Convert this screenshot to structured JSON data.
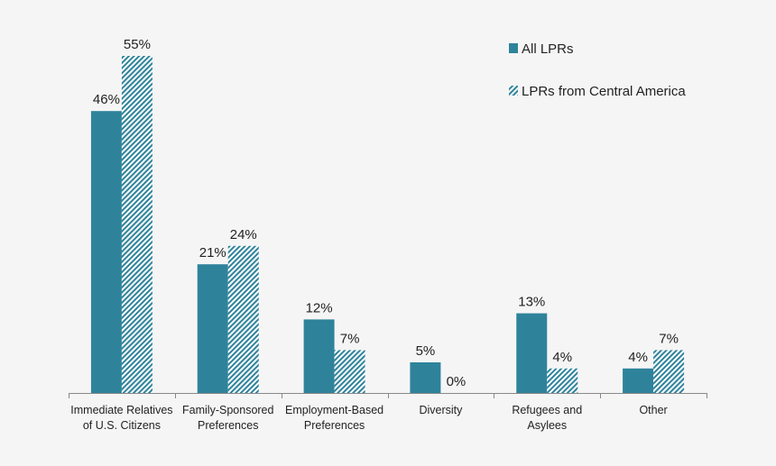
{
  "chart_data": {
    "type": "bar",
    "title": "",
    "xlabel": "",
    "ylabel": "",
    "ylim": [
      0,
      60
    ],
    "grid": false,
    "legend_position": "top-right",
    "categories": [
      [
        "Immediate Relatives",
        "of U.S. Citizens"
      ],
      [
        "Family-Sponsored",
        "Preferences"
      ],
      [
        "Employment-Based",
        "Preferences"
      ],
      [
        "Diversity"
      ],
      [
        "Refugees and",
        "Asylees"
      ],
      [
        "Other"
      ]
    ],
    "series": [
      {
        "name": "All LPRs",
        "values": [
          46,
          21,
          12,
          5,
          13,
          4
        ],
        "labels": [
          "46%",
          "21%",
          "12%",
          "5%",
          "13%",
          "4%"
        ],
        "color": "#2e839b",
        "pattern": "solid"
      },
      {
        "name": "LPRs from Central America",
        "values": [
          55,
          24,
          7,
          0,
          4,
          7
        ],
        "labels": [
          "55%",
          "24%",
          "7%",
          "0%",
          "4%",
          "7%"
        ],
        "color": "#2e839b",
        "pattern": "diagonal-hatch"
      }
    ]
  }
}
